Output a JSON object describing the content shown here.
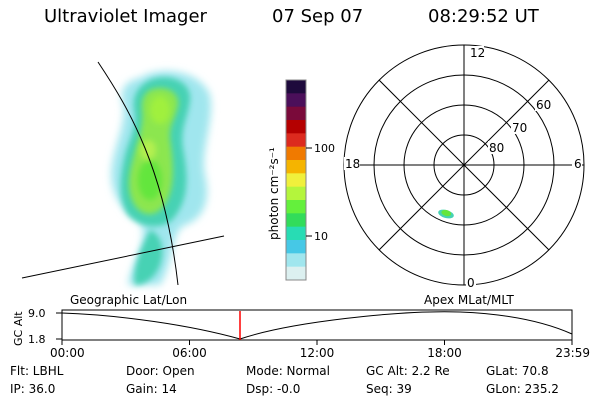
{
  "header": {
    "instrument": "Ultraviolet Imager",
    "date": "07 Sep 07",
    "time": "08:29:52 UT"
  },
  "colorbar": {
    "unit_label": "photon cm⁻²s⁻¹",
    "tick_high": "100",
    "tick_low": "10",
    "colors": [
      "#1e0a3c",
      "#4b0f5a",
      "#7a0a3a",
      "#b40000",
      "#dc2a1e",
      "#f07a00",
      "#f5b400",
      "#f0f03c",
      "#b4f53c",
      "#64f03c",
      "#32dc5a",
      "#28dcb4",
      "#46c8e6",
      "#a0e6ee",
      "#dcf0f0"
    ]
  },
  "polar": {
    "mlt_top": "12",
    "mlt_bottom": "0",
    "mlt_left": "18",
    "mlt_right": "6",
    "lat_60": "60",
    "lat_70": "70",
    "lat_80": "80"
  },
  "timeline": {
    "left_label": "Geographic Lat/Lon",
    "right_label": "Apex MLat/MLT",
    "y_axis_title": "GC Alt",
    "y_top": "9.0",
    "y_bottom": "1.8",
    "x_ticks": [
      "00:00",
      "06:00",
      "12:00",
      "18:00",
      "23:59"
    ],
    "marker_color": "#ff0000"
  },
  "status": {
    "flt": "Flt: LBHL",
    "door": "Door: Open",
    "mode": "Mode: Normal",
    "gc_alt": "GC Alt: 2.2 Re",
    "glat": "GLat: 70.8",
    "ip": "IP: 36.0",
    "gain": "Gain: 14",
    "dsp": "Dsp: -0.0",
    "seq": "Seq: 39",
    "glon": "GLon: 235.2"
  }
}
